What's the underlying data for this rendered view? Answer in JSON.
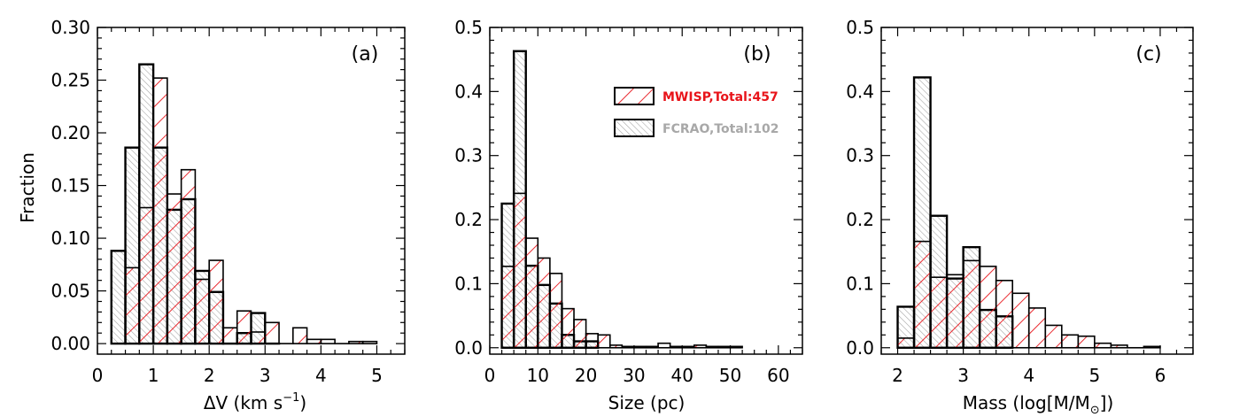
{
  "colors": {
    "mwisp": "#e8141a",
    "fcrao": "#a8a8a8",
    "axis": "#000000"
  },
  "legend": {
    "mwisp_label": "MWISP,Total:457",
    "fcrao_label": "FCRAO,Total:102"
  },
  "chart_data": [
    {
      "type": "bar",
      "panel": "(a)",
      "ylabel": "Fraction",
      "xlabel_main": "ΔV (km s",
      "xlabel_sup": "−1",
      "xlabel_end": ")",
      "xlim": [
        0,
        5.5
      ],
      "ylim": [
        -0.01,
        0.3
      ],
      "xticks": [
        0,
        1,
        2,
        3,
        4,
        5
      ],
      "xtick_labels": [
        "0",
        "1",
        "2",
        "3",
        "4",
        "5"
      ],
      "yticks": [
        0.0,
        0.05,
        0.1,
        0.15,
        0.2,
        0.25,
        0.3
      ],
      "ytick_labels": [
        "0.00",
        "0.05",
        "0.10",
        "0.15",
        "0.20",
        "0.25",
        "0.30"
      ],
      "bin_width": 0.25,
      "series": [
        {
          "name": "FCRAO",
          "x": [
            0.25,
            0.5,
            0.75,
            1.0,
            1.25,
            1.5,
            1.75,
            2.0,
            2.25,
            2.5,
            2.75,
            3.0
          ],
          "values": [
            0.088,
            0.186,
            0.265,
            0.186,
            0.127,
            0.137,
            0.069,
            0.049,
            0.0,
            0.01,
            0.029,
            0.0
          ]
        },
        {
          "name": "MWISP",
          "x": [
            0.5,
            0.75,
            1.0,
            1.25,
            1.5,
            1.75,
            2.0,
            2.25,
            2.5,
            2.75,
            3.0,
            3.25,
            3.5,
            3.75,
            4.0,
            4.25,
            4.5,
            4.75
          ],
          "values": [
            0.072,
            0.129,
            0.252,
            0.142,
            0.165,
            0.061,
            0.079,
            0.015,
            0.031,
            0.011,
            0.02,
            0.0,
            0.015,
            0.004,
            0.004,
            0.0,
            0.002,
            0.002
          ]
        }
      ]
    },
    {
      "type": "bar",
      "panel": "(b)",
      "ylabel": "",
      "xlabel_main": "Size (pc)",
      "xlim": [
        0,
        65
      ],
      "ylim": [
        -0.01,
        0.5
      ],
      "xticks": [
        0,
        10,
        20,
        30,
        40,
        50,
        60
      ],
      "xtick_labels": [
        "0",
        "10",
        "20",
        "30",
        "40",
        "50",
        "60"
      ],
      "yticks": [
        0.0,
        0.1,
        0.2,
        0.3,
        0.4,
        0.5
      ],
      "ytick_labels": [
        "0.0",
        "0.1",
        "0.2",
        "0.3",
        "0.4",
        "0.5"
      ],
      "bin_width": 2.5,
      "series": [
        {
          "name": "FCRAO",
          "x": [
            2.5,
            5.0,
            7.5,
            10.0,
            12.5,
            15.0,
            17.5,
            20.0
          ],
          "values": [
            0.225,
            0.463,
            0.128,
            0.098,
            0.069,
            0.02,
            0.01,
            0.01
          ]
        },
        {
          "name": "MWISP",
          "x": [
            2.5,
            5.0,
            7.5,
            10.0,
            12.5,
            15.0,
            17.5,
            20.0,
            22.5,
            25.0,
            27.5,
            30.0,
            32.5,
            35.0,
            37.5,
            40.0,
            42.5,
            45.0,
            47.5,
            50.0
          ],
          "values": [
            0.127,
            0.241,
            0.171,
            0.14,
            0.116,
            0.061,
            0.044,
            0.022,
            0.02,
            0.004,
            0.002,
            0.002,
            0.002,
            0.007,
            0.002,
            0.002,
            0.004,
            0.002,
            0.002,
            0.002
          ]
        }
      ]
    },
    {
      "type": "bar",
      "panel": "(c)",
      "ylabel": "",
      "xlabel_main": "Mass (log[M/M",
      "xlabel_sub": "⊙",
      "xlabel_end": "])",
      "xlim": [
        1.75,
        6.5
      ],
      "ylim": [
        -0.01,
        0.5
      ],
      "xticks": [
        2,
        3,
        4,
        5,
        6
      ],
      "xtick_labels": [
        "2",
        "3",
        "4",
        "5",
        "6"
      ],
      "yticks": [
        0.0,
        0.1,
        0.2,
        0.3,
        0.4,
        0.5
      ],
      "ytick_labels": [
        "0.0",
        "0.1",
        "0.2",
        "0.3",
        "0.4",
        "0.5"
      ],
      "bin_width": 0.25,
      "series": [
        {
          "name": "FCRAO",
          "x": [
            2.0,
            2.25,
            2.5,
            2.75,
            3.0,
            3.25,
            3.5
          ],
          "values": [
            0.064,
            0.422,
            0.206,
            0.108,
            0.157,
            0.059,
            0.049
          ]
        },
        {
          "name": "MWISP",
          "x": [
            2.0,
            2.25,
            2.5,
            2.75,
            3.0,
            3.25,
            3.5,
            3.75,
            4.0,
            4.25,
            4.5,
            4.75,
            5.0,
            5.25,
            5.5,
            5.75
          ],
          "values": [
            0.015,
            0.166,
            0.11,
            0.114,
            0.136,
            0.127,
            0.105,
            0.085,
            0.062,
            0.035,
            0.02,
            0.018,
            0.007,
            0.004,
            0.0,
            0.002
          ]
        }
      ]
    }
  ]
}
